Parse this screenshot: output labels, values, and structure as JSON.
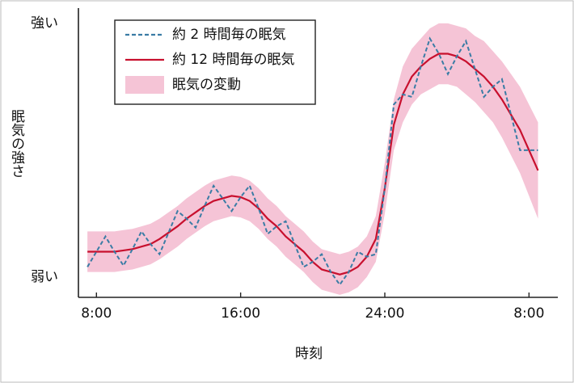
{
  "chart_data": {
    "type": "line",
    "x_label": "時刻",
    "y_label": "眠気の強さ",
    "x": [
      7.5,
      8,
      8.5,
      9,
      9.5,
      10,
      10.5,
      11,
      11.5,
      12,
      12.5,
      13,
      13.5,
      14,
      14.5,
      15,
      15.5,
      16,
      16.5,
      17,
      17.5,
      18,
      18.5,
      19,
      19.5,
      20,
      20.5,
      21,
      21.5,
      22,
      22.5,
      23,
      23.5,
      24,
      24.5,
      25,
      25.5,
      26,
      26.5,
      27,
      27.5,
      28,
      28.5,
      29,
      29.5,
      30,
      30.5,
      31,
      31.5,
      32,
      32.5
    ],
    "series": [
      {
        "name": "約 2 時間毎の眠気",
        "color": "#3a7ca5",
        "dashed": true,
        "values": [
          4,
          10,
          16,
          10,
          4.5,
          11,
          18,
          13,
          9,
          17.5,
          26,
          23,
          19.5,
          28,
          36,
          31,
          26,
          31.5,
          36,
          27,
          17,
          20,
          22,
          13,
          4,
          6,
          9,
          2,
          -3,
          2,
          10,
          8,
          9,
          35,
          68,
          72,
          71,
          83,
          94,
          88,
          80,
          87,
          93,
          82,
          71,
          75,
          78,
          64,
          50,
          50,
          50
        ]
      },
      {
        "name": "約 12 時間毎の眠気",
        "color": "#c8102e",
        "dashed": false,
        "values": [
          10,
          10,
          10,
          10,
          10.5,
          11,
          12,
          13,
          15,
          17.5,
          20,
          23,
          25.5,
          28,
          30,
          31,
          32,
          31.5,
          30,
          27,
          23,
          20,
          16,
          13,
          10,
          6,
          3,
          2,
          1,
          2,
          4,
          8,
          15,
          35,
          60,
          72,
          79,
          83,
          86,
          88,
          88,
          87,
          85,
          82,
          79,
          75,
          70,
          64,
          58,
          50,
          42
        ]
      }
    ],
    "band": {
      "name": "眠気の変動",
      "color": "#f5c4d6",
      "upper": [
        18,
        18,
        18,
        18,
        18.5,
        19,
        20,
        21,
        23,
        25.5,
        28,
        31,
        33.5,
        36,
        38,
        39,
        40,
        39.5,
        38,
        35,
        31,
        28,
        24,
        21,
        18,
        14,
        11,
        10,
        9,
        10,
        12,
        16,
        24,
        45,
        70,
        83,
        90,
        94,
        98,
        100,
        100,
        99,
        98,
        95,
        93,
        89,
        85,
        80,
        75,
        68,
        61
      ],
      "lower": [
        2,
        2,
        2,
        2,
        2.5,
        3,
        4,
        5,
        7,
        9.5,
        12,
        15,
        17.5,
        20,
        22,
        23,
        24,
        23.5,
        22,
        19,
        15,
        12,
        8,
        5,
        2,
        -2,
        -5,
        -6,
        -7,
        -6,
        -4,
        0,
        6,
        25,
        50,
        61,
        68,
        72,
        74,
        76,
        76,
        75,
        72,
        69,
        65,
        61,
        55,
        48,
        41,
        32,
        23
      ]
    },
    "xlim": [
      7,
      33.6
    ],
    "xticks": [
      {
        "value": 8,
        "label": "8:00"
      },
      {
        "value": 16,
        "label": "16:00"
      },
      {
        "value": 24,
        "label": "24:00"
      },
      {
        "value": 32,
        "label": "8:00"
      }
    ],
    "ylim": [
      -8,
      106
    ],
    "yticks": [
      {
        "value": 0,
        "label": "弱い"
      },
      {
        "value": 100,
        "label": "強い"
      }
    ],
    "legend": "upper left"
  }
}
